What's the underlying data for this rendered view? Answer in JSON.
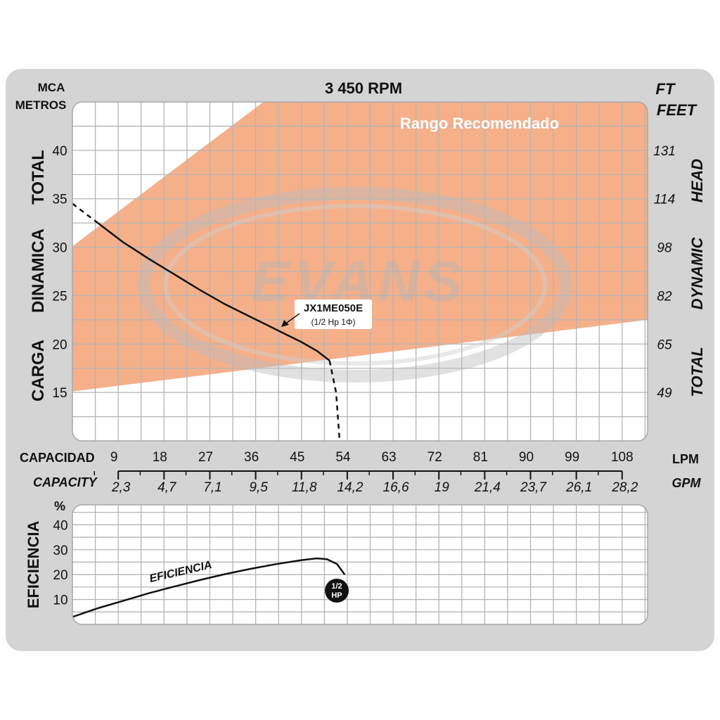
{
  "colors": {
    "panel_bg": "#d4d4d4",
    "plot_bg": "#ffffff",
    "grid": "#b4b4b4",
    "recommended_fill": "#f5b08a",
    "curve": "#111111",
    "watermark": "#c8c8c8",
    "text": "#111111",
    "badge_fill": "#111111",
    "badge_text": "#ffffff"
  },
  "chart_data": [
    {
      "type": "line",
      "title": "3 450 RPM",
      "left_axis": {
        "unit": "MCA",
        "unit2": "METROS",
        "words": [
          "CARGA",
          "DINAMICA",
          "TOTAL"
        ]
      },
      "right_axis": {
        "unit": "FT",
        "unit2": "FEET",
        "words": [
          "TOTAL",
          "DYNAMIC",
          "HEAD"
        ]
      },
      "xlabel_lpm": "CAPACIDAD",
      "xlabel_gpm": "CAPACITY",
      "x_unit_lpm": "LPM",
      "x_unit_gpm": "GPM",
      "xlim": [
        0,
        113
      ],
      "ylim": [
        10,
        45
      ],
      "x_ticks_lpm": [
        9,
        18,
        27,
        36,
        45,
        54,
        63,
        72,
        81,
        90,
        99,
        108
      ],
      "x_ticks_gpm": [
        "2,3",
        "4,7",
        "7,1",
        "9,5",
        "11,8",
        "14,2",
        "16,6",
        "19",
        "21,4",
        "23,7",
        "26,1",
        "28,2"
      ],
      "y_ticks_left": [
        15,
        20,
        25,
        30,
        35,
        40
      ],
      "y_ticks_right": [
        {
          "value": 15,
          "label": "49"
        },
        {
          "value": 20,
          "label": "65"
        },
        {
          "value": 25,
          "label": "82"
        },
        {
          "value": 30,
          "label": "98"
        },
        {
          "value": 35,
          "label": "114"
        },
        {
          "value": 40,
          "label": "131"
        }
      ],
      "recommended_range": {
        "label": "Rango Recomendado",
        "polygon": [
          [
            0,
            15.1
          ],
          [
            0,
            30.1
          ],
          [
            37.5,
            45
          ],
          [
            113,
            45
          ],
          [
            113,
            22.5
          ]
        ]
      },
      "watermark": "EVANS",
      "series": [
        {
          "name": "JX1ME050E",
          "subtitle": "(1/2 Hp 1Φ)",
          "points": [
            [
              5,
              32.5
            ],
            [
              10,
              30.5
            ],
            [
              15,
              28.8
            ],
            [
              20,
              27.2
            ],
            [
              25,
              25.6
            ],
            [
              30,
              24.1
            ],
            [
              35,
              22.8
            ],
            [
              40,
              21.5
            ],
            [
              45,
              20.2
            ],
            [
              48,
              19.3
            ],
            [
              50.5,
              18.3
            ]
          ],
          "dashed_start": [
            [
              0,
              34.5
            ],
            [
              5,
              32.5
            ]
          ],
          "dashed_end": [
            [
              50.5,
              18.3
            ],
            [
              51.8,
              15
            ],
            [
              52.5,
              10
            ]
          ]
        }
      ]
    },
    {
      "type": "line",
      "ylabel": "EFICIENCIA",
      "y_unit": "%",
      "xlim": [
        0,
        113
      ],
      "ylim": [
        0,
        48
      ],
      "y_ticks": [
        10,
        20,
        30,
        40
      ],
      "curve_label": "EFICIENCIA",
      "badge": [
        "1/2",
        "HP"
      ],
      "series": [
        {
          "name": "EFICIENCIA",
          "points": [
            [
              0,
              3
            ],
            [
              5,
              6.5
            ],
            [
              10,
              9.5
            ],
            [
              15,
              12.5
            ],
            [
              20,
              15.2
            ],
            [
              25,
              17.8
            ],
            [
              30,
              20.2
            ],
            [
              35,
              22.3
            ],
            [
              40,
              24.2
            ],
            [
              45,
              25.8
            ],
            [
              48,
              26.5
            ],
            [
              50,
              26.2
            ],
            [
              52,
              24.2
            ],
            [
              53.5,
              20
            ]
          ]
        }
      ]
    }
  ]
}
